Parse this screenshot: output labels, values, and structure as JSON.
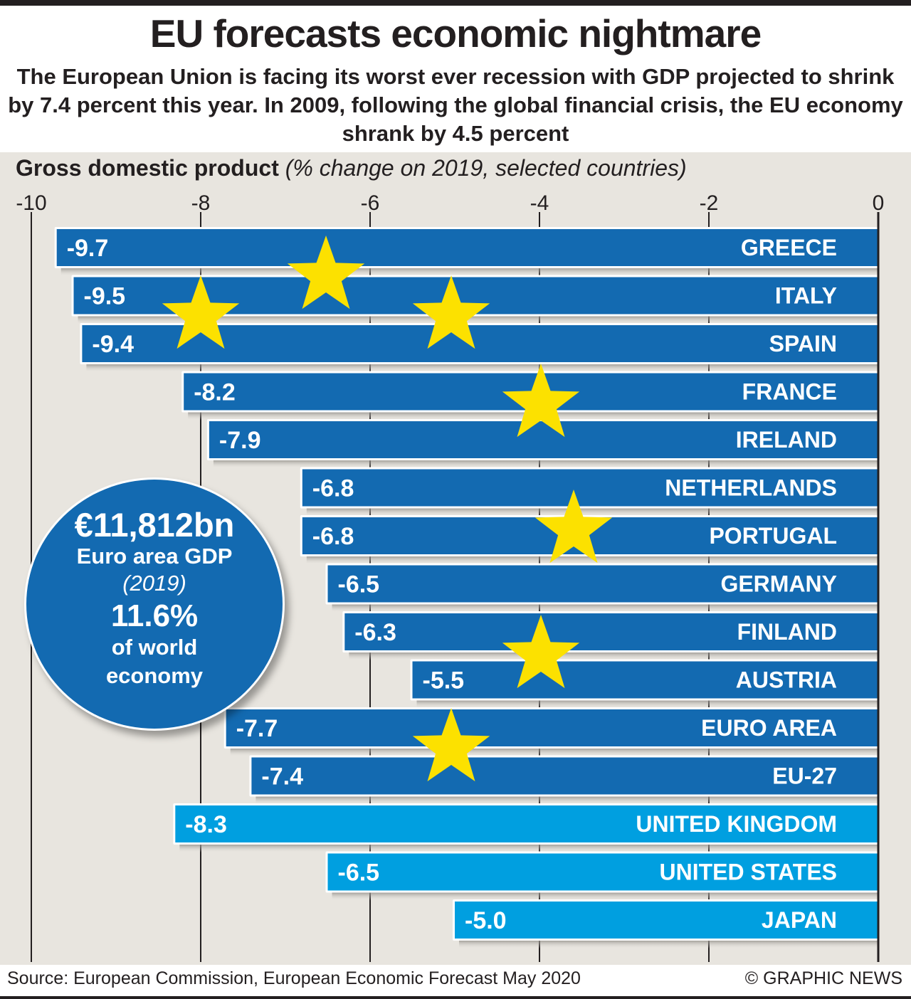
{
  "header": {
    "title": "EU forecasts economic nightmare",
    "subtitle": "The European Union is facing its worst ever recession with GDP projected to shrink by 7.4 percent this year. In 2009, following the global financial crisis, the EU economy shrank by 4.5 percent"
  },
  "chart_data": {
    "type": "bar",
    "orientation": "horizontal",
    "title": "Gross domestic product",
    "title_unit": "(% change on 2019, selected countries)",
    "xlabel": "",
    "ylabel": "",
    "xlim": [
      -10,
      0
    ],
    "xticks": [
      -10,
      -8,
      -6,
      -4,
      -2,
      0
    ],
    "xtick_labels": [
      "-10",
      "-8",
      "-6",
      "-4",
      "-2",
      "0"
    ],
    "grid": true,
    "categories": [
      "GREECE",
      "ITALY",
      "SPAIN",
      "FRANCE",
      "IRELAND",
      "NETHERLANDS",
      "PORTUGAL",
      "GERMANY",
      "FINLAND",
      "AUSTRIA",
      "EURO AREA",
      "EU-27",
      "UNITED KINGDOM",
      "UNITED STATES",
      "JAPAN"
    ],
    "values": [
      -9.7,
      -9.5,
      -9.4,
      -8.2,
      -7.9,
      -6.8,
      -6.8,
      -6.5,
      -6.3,
      -5.5,
      -7.7,
      -7.4,
      -8.3,
      -6.5,
      -5.0
    ],
    "value_labels": [
      "-9.7",
      "-9.5",
      "-9.4",
      "-8.2",
      "-7.9",
      "-6.8",
      "-6.8",
      "-6.5",
      "-6.3",
      "-5.5",
      "-7.7",
      "-7.4",
      "-8.3",
      "-6.5",
      "-5.0"
    ],
    "groups": [
      "eu",
      "eu",
      "eu",
      "eu",
      "eu",
      "eu",
      "eu",
      "eu",
      "eu",
      "eu",
      "eu",
      "eu",
      "non-eu",
      "non-eu",
      "non-eu"
    ],
    "colors": {
      "eu": "#136ab1",
      "non-eu": "#009fe0",
      "star": "#fce100",
      "background": "#e8e5df"
    },
    "decoration": "EU flag star ring"
  },
  "callout": {
    "amount": "€11,812bn",
    "label": "Euro area GDP",
    "year": "(2019)",
    "percent": "11.6%",
    "desc_line1": "of world",
    "desc_line2": "economy"
  },
  "footer": {
    "source": "Source: European Commission, European Economic Forecast May 2020",
    "credit": "© GRAPHIC NEWS"
  }
}
